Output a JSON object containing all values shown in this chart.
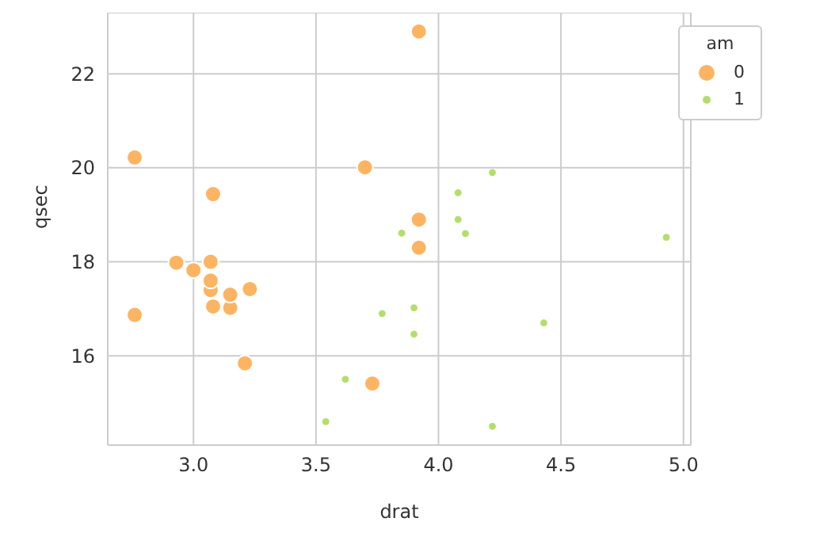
{
  "chart_data": {
    "type": "scatter",
    "xlabel": "drat",
    "ylabel": "qsec",
    "legend_title": "am",
    "legend": "top right",
    "grid": true,
    "marker": "circle",
    "xlim": [
      2.65,
      5.03
    ],
    "xticks": [
      {
        "value": 3.0,
        "label": "3.0"
      },
      {
        "value": 3.5,
        "label": "3.5"
      },
      {
        "value": 4.0,
        "label": "4.0"
      },
      {
        "value": 4.5,
        "label": "4.5"
      },
      {
        "value": 5.0,
        "label": "5.0"
      }
    ],
    "ylim": [
      14.1,
      23.3
    ],
    "yticks": [
      16,
      18,
      20,
      22
    ],
    "series": [
      {
        "name": "0",
        "color": "#fdb462",
        "x": [
          3.08,
          3.15,
          2.76,
          3.21,
          3.69,
          3.92,
          3.92,
          3.92,
          3.07,
          3.07,
          3.07,
          2.93,
          3.0,
          3.23,
          2.76,
          3.15,
          3.73,
          3.08,
          3.7
        ],
        "values": [
          19.44,
          17.02,
          20.22,
          15.84,
          null,
          22.9,
          18.3,
          18.9,
          17.4,
          17.6,
          18.0,
          17.98,
          17.82,
          17.42,
          16.87,
          17.3,
          15.41,
          17.05,
          20.01
        ]
      },
      {
        "name": "1",
        "color": "#b3de69",
        "x": [
          3.9,
          3.9,
          3.85,
          4.08,
          4.93,
          4.22,
          4.08,
          4.43,
          3.77,
          4.22,
          3.62,
          3.54,
          4.11
        ],
        "values": [
          16.46,
          17.02,
          18.61,
          19.47,
          18.52,
          19.9,
          18.9,
          16.7,
          16.9,
          14.5,
          15.5,
          14.6,
          18.6
        ]
      }
    ]
  }
}
